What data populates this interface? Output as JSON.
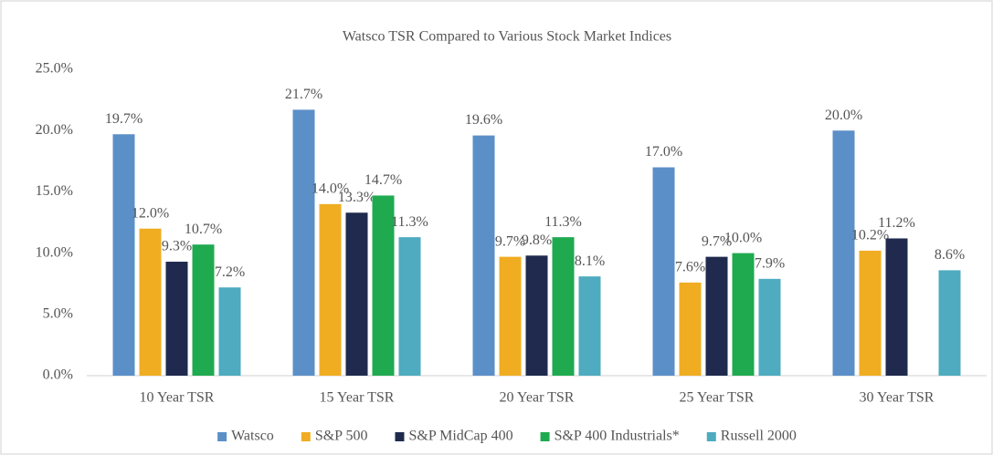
{
  "chart_data": {
    "type": "bar",
    "title": "Watsco TSR Compared to Various Stock Market Indices",
    "categories": [
      "10 Year TSR",
      "15 Year TSR",
      "20 Year TSR",
      "25 Year TSR",
      "30 Year TSR"
    ],
    "series": [
      {
        "name": "Watsco",
        "color": "#5b8fc8",
        "values": [
          19.7,
          21.7,
          19.6,
          17.0,
          20.0
        ],
        "value_labels": [
          "19.7%",
          "21.7%",
          "19.6%",
          "17.0%",
          "20.0%"
        ]
      },
      {
        "name": "S&P 500",
        "color": "#f0ad22",
        "values": [
          12.0,
          14.0,
          9.7,
          7.6,
          10.2
        ],
        "value_labels": [
          "12.0%",
          "14.0%",
          "9.7%",
          "7.6%",
          "10.2%"
        ]
      },
      {
        "name": "S&P MidCap 400",
        "color": "#1f2a4e",
        "values": [
          9.3,
          13.3,
          9.8,
          9.7,
          11.2
        ],
        "value_labels": [
          "9.3%",
          "13.3%",
          "9.8%",
          "9.7%",
          "11.2%"
        ]
      },
      {
        "name": "S&P 400 Industrials*",
        "color": "#1faa50",
        "values": [
          10.7,
          14.7,
          11.3,
          10.0,
          null
        ],
        "value_labels": [
          "10.7%",
          "14.7%",
          "11.3%",
          "10.0%",
          null
        ]
      },
      {
        "name": "Russell 2000",
        "color": "#4eabc0",
        "values": [
          7.2,
          11.3,
          8.1,
          7.9,
          8.6
        ],
        "value_labels": [
          "7.2%",
          "11.3%",
          "8.1%",
          "7.9%",
          "8.6%"
        ]
      }
    ],
    "ylim": [
      0,
      25
    ],
    "yticks": [
      {
        "value": 0,
        "label": "0.0%"
      },
      {
        "value": 5,
        "label": "5.0%"
      },
      {
        "value": 10,
        "label": "10.0%"
      },
      {
        "value": 15,
        "label": "15.0%"
      },
      {
        "value": 20,
        "label": "20.0%"
      },
      {
        "value": 25,
        "label": "25.0%"
      }
    ],
    "grid": false,
    "legend": "bottom"
  }
}
